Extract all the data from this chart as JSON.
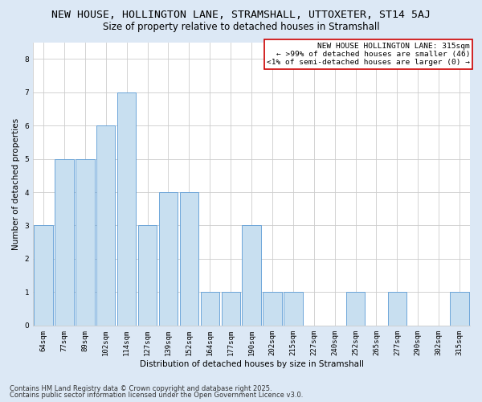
{
  "title_line1": "NEW HOUSE, HOLLINGTON LANE, STRAMSHALL, UTTOXETER, ST14 5AJ",
  "title_line2": "Size of property relative to detached houses in Stramshall",
  "xlabel": "Distribution of detached houses by size in Stramshall",
  "ylabel": "Number of detached properties",
  "categories": [
    "64sqm",
    "77sqm",
    "89sqm",
    "102sqm",
    "114sqm",
    "127sqm",
    "139sqm",
    "152sqm",
    "164sqm",
    "177sqm",
    "190sqm",
    "202sqm",
    "215sqm",
    "227sqm",
    "240sqm",
    "252sqm",
    "265sqm",
    "277sqm",
    "290sqm",
    "302sqm",
    "315sqm"
  ],
  "values": [
    3,
    5,
    5,
    6,
    7,
    3,
    4,
    4,
    1,
    1,
    3,
    1,
    1,
    0,
    0,
    1,
    0,
    1,
    0,
    0,
    1
  ],
  "bar_color": "#c8dff0",
  "bar_edge_color": "#5b9bd5",
  "ylim": [
    0,
    8.5
  ],
  "yticks": [
    0,
    1,
    2,
    3,
    4,
    5,
    6,
    7,
    8
  ],
  "grid_color": "#cccccc",
  "fig_background_color": "#dce8f5",
  "plot_background_color": "#ffffff",
  "annotation_box_text": "NEW HOUSE HOLLINGTON LANE: 315sqm\n← >99% of detached houses are smaller (46)\n<1% of semi-detached houses are larger (0) →",
  "annotation_box_color": "#ffffff",
  "annotation_box_edge_color": "#cc0000",
  "footnote1": "Contains HM Land Registry data © Crown copyright and database right 2025.",
  "footnote2": "Contains public sector information licensed under the Open Government Licence v3.0.",
  "title_fontsize": 9.5,
  "subtitle_fontsize": 8.5,
  "axis_label_fontsize": 7.5,
  "tick_fontsize": 6.5,
  "annotation_fontsize": 6.8,
  "footnote_fontsize": 6.0
}
